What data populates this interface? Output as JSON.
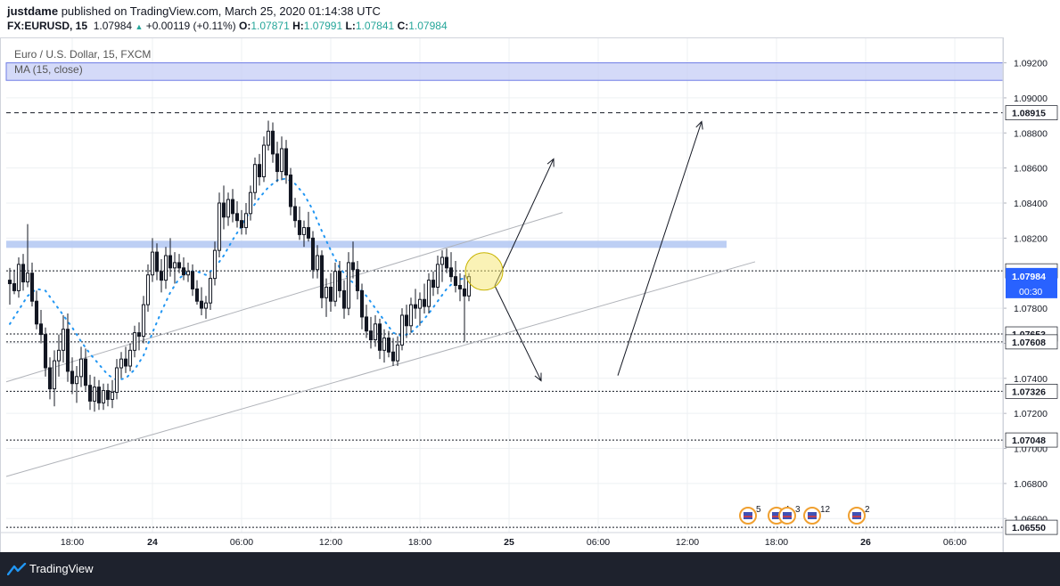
{
  "header": {
    "user": "justdame",
    "published": "published on TradingView.com, March 25, 2020 01:14:38 UTC",
    "symbol": "FX:EURUSD, 15",
    "last": "1.07984",
    "change": "+0.00119 (+0.11%)",
    "o_label": "O:",
    "o_val": "1.07871",
    "h_label": "H:",
    "h_val": "1.07991",
    "l_label": "L:",
    "l_val": "1.07841",
    "c_label": "C:",
    "c_val": "1.07984"
  },
  "legend": {
    "title": "Euro / U.S. Dollar, 15, FXCM",
    "indicator": "MA (15, close)"
  },
  "footer": {
    "brand": "TradingView"
  },
  "colors": {
    "up": "#26a69a",
    "candle": "#131722",
    "ma": "#2196f3",
    "zone": "#b2c7f2",
    "zone_stroke": "#6f7de6",
    "highlight": "#f5e66e",
    "last_price": "#2962ff",
    "footer_bg": "#1e222d"
  },
  "chart_data": {
    "type": "candlestick",
    "title": "Euro / U.S. Dollar, 15, FXCM",
    "y_ticks": [
      1.092,
      1.09,
      1.088,
      1.086,
      1.084,
      1.082,
      1.078,
      1.076,
      1.074,
      1.072,
      1.07,
      1.068,
      1.066
    ],
    "y_tick_labels": [
      "1.09200",
      "1.09000",
      "1.08800",
      "1.08600",
      "1.08400",
      "1.08200",
      "1.07800",
      "1.07600",
      "1.07400",
      "1.07200",
      "1.07000",
      "1.06800",
      "1.06600"
    ],
    "ylim": [
      1.0652,
      1.0934
    ],
    "x_ticks": [
      0.5,
      5,
      10,
      15,
      20,
      25,
      30,
      35,
      40,
      45,
      50
    ],
    "x_tick_labels": [
      "18:00",
      "24",
      "06:00",
      "12:00",
      "18:00",
      "25",
      "06:00",
      "12:00",
      "18:00",
      "26",
      "06:00"
    ],
    "x_tick_bold": [
      false,
      true,
      false,
      false,
      false,
      true,
      false,
      false,
      false,
      true,
      false
    ],
    "xlim": [
      -3.2,
      52.7
    ],
    "candles": [
      [
        -3.0,
        1.0796,
        1.0803,
        1.0782,
        1.0794
      ],
      [
        -2.75,
        1.0794,
        1.0802,
        1.0788,
        1.079
      ],
      [
        -2.5,
        1.079,
        1.0809,
        1.0786,
        1.0805
      ],
      [
        -2.25,
        1.0805,
        1.0811,
        1.079,
        1.0795
      ],
      [
        -2.0,
        1.0795,
        1.0828,
        1.0792,
        1.08
      ],
      [
        -1.75,
        1.08,
        1.0806,
        1.0781,
        1.0784
      ],
      [
        -1.5,
        1.0784,
        1.079,
        1.0768,
        1.0771
      ],
      [
        -1.25,
        1.0771,
        1.0779,
        1.076,
        1.0765
      ],
      [
        -1.0,
        1.0765,
        1.0769,
        1.0741,
        1.0746
      ],
      [
        -0.75,
        1.0746,
        1.0752,
        1.0728,
        1.0734
      ],
      [
        -0.5,
        1.0734,
        1.0756,
        1.0724,
        1.075
      ],
      [
        -0.25,
        1.075,
        1.0765,
        1.0741,
        1.0756
      ],
      [
        0.0,
        1.0756,
        1.0776,
        1.0749,
        1.0768
      ],
      [
        0.25,
        1.0768,
        1.0777,
        1.0738,
        1.0744
      ],
      [
        0.5,
        1.0744,
        1.0752,
        1.0731,
        1.0737
      ],
      [
        0.75,
        1.0737,
        1.0747,
        1.0726,
        1.0741
      ],
      [
        1.0,
        1.0741,
        1.0758,
        1.0735,
        1.0751
      ],
      [
        1.25,
        1.0751,
        1.0757,
        1.0733,
        1.0736
      ],
      [
        1.5,
        1.0736,
        1.0742,
        1.0722,
        1.0727
      ],
      [
        1.75,
        1.0727,
        1.0741,
        1.0721,
        1.0735
      ],
      [
        2.0,
        1.0735,
        1.0739,
        1.0722,
        1.0726
      ],
      [
        2.25,
        1.0726,
        1.0737,
        1.0722,
        1.0733
      ],
      [
        2.5,
        1.0733,
        1.0737,
        1.0724,
        1.0728
      ],
      [
        2.75,
        1.0728,
        1.0739,
        1.0723,
        1.0732
      ],
      [
        3.0,
        1.0732,
        1.0751,
        1.0728,
        1.0746
      ],
      [
        3.25,
        1.0746,
        1.0755,
        1.074,
        1.0751
      ],
      [
        3.5,
        1.0751,
        1.0758,
        1.0743,
        1.0747
      ],
      [
        3.75,
        1.0747,
        1.076,
        1.0744,
        1.0756
      ],
      [
        4.0,
        1.0756,
        1.077,
        1.0752,
        1.0766
      ],
      [
        4.25,
        1.0766,
        1.0772,
        1.0756,
        1.0764
      ],
      [
        4.5,
        1.0764,
        1.0787,
        1.076,
        1.0782
      ],
      [
        4.75,
        1.0782,
        1.0805,
        1.0778,
        1.0799
      ],
      [
        5.0,
        1.0799,
        1.082,
        1.0795,
        1.0812
      ],
      [
        5.25,
        1.0812,
        1.0817,
        1.0796,
        1.0801
      ],
      [
        5.5,
        1.0801,
        1.0808,
        1.0789,
        1.0796
      ],
      [
        5.75,
        1.0796,
        1.0815,
        1.0791,
        1.081
      ],
      [
        6.0,
        1.081,
        1.082,
        1.0798,
        1.0803
      ],
      [
        6.25,
        1.0803,
        1.0812,
        1.0794,
        1.0806
      ],
      [
        6.5,
        1.0806,
        1.0811,
        1.08,
        1.0803
      ],
      [
        6.75,
        1.0803,
        1.0809,
        1.0796,
        1.0799
      ],
      [
        7.0,
        1.0799,
        1.0806,
        1.0795,
        1.0801
      ],
      [
        7.25,
        1.0801,
        1.0805,
        1.0787,
        1.0791
      ],
      [
        7.5,
        1.0791,
        1.0796,
        1.0782,
        1.0784
      ],
      [
        7.75,
        1.0784,
        1.0792,
        1.0776,
        1.078
      ],
      [
        8.0,
        1.078,
        1.0787,
        1.0774,
        1.0783
      ],
      [
        8.25,
        1.0783,
        1.0801,
        1.0779,
        1.0797
      ],
      [
        8.5,
        1.0797,
        1.0818,
        1.0793,
        1.0813
      ],
      [
        8.75,
        1.0813,
        1.0846,
        1.0809,
        1.084
      ],
      [
        9.0,
        1.084,
        1.085,
        1.0825,
        1.0832
      ],
      [
        9.25,
        1.0832,
        1.0846,
        1.0827,
        1.0842
      ],
      [
        9.5,
        1.0842,
        1.0848,
        1.0829,
        1.0834
      ],
      [
        9.75,
        1.0834,
        1.0841,
        1.0826,
        1.083
      ],
      [
        10.0,
        1.083,
        1.0836,
        1.0822,
        1.0826
      ],
      [
        10.25,
        1.0826,
        1.084,
        1.0822,
        1.0834
      ],
      [
        10.5,
        1.0834,
        1.085,
        1.083,
        1.0846
      ],
      [
        10.75,
        1.0846,
        1.0866,
        1.0842,
        1.0862
      ],
      [
        11.0,
        1.0862,
        1.0868,
        1.085,
        1.0855
      ],
      [
        11.25,
        1.0855,
        1.0878,
        1.0852,
        1.0873
      ],
      [
        11.5,
        1.0873,
        1.0887,
        1.087,
        1.0881
      ],
      [
        11.75,
        1.0881,
        1.0886,
        1.0863,
        1.0868
      ],
      [
        12.0,
        1.0868,
        1.0875,
        1.0852,
        1.0858
      ],
      [
        12.25,
        1.0858,
        1.0878,
        1.0853,
        1.0871
      ],
      [
        12.5,
        1.0871,
        1.0876,
        1.0851,
        1.0856
      ],
      [
        12.75,
        1.0856,
        1.086,
        1.0833,
        1.0838
      ],
      [
        13.0,
        1.0838,
        1.0843,
        1.0826,
        1.083
      ],
      [
        13.25,
        1.083,
        1.0838,
        1.0819,
        1.0822
      ],
      [
        13.5,
        1.0822,
        1.083,
        1.0815,
        1.0826
      ],
      [
        13.75,
        1.0826,
        1.0835,
        1.0818,
        1.082
      ],
      [
        14.0,
        1.082,
        1.0824,
        1.0797,
        1.0802
      ],
      [
        14.25,
        1.0802,
        1.0816,
        1.0797,
        1.081
      ],
      [
        14.5,
        1.081,
        1.0813,
        1.078,
        1.0786
      ],
      [
        14.75,
        1.0786,
        1.0797,
        1.0775,
        1.0792
      ],
      [
        15.0,
        1.0792,
        1.08,
        1.0778,
        1.0784
      ],
      [
        15.25,
        1.0784,
        1.0806,
        1.0781,
        1.0801
      ],
      [
        15.5,
        1.0801,
        1.0807,
        1.0786,
        1.079
      ],
      [
        15.75,
        1.079,
        1.0796,
        1.0774,
        1.078
      ],
      [
        16.0,
        1.078,
        1.0812,
        1.0776,
        1.0806
      ],
      [
        16.25,
        1.0806,
        1.0818,
        1.0797,
        1.0802
      ],
      [
        16.5,
        1.0802,
        1.0807,
        1.0785,
        1.079
      ],
      [
        16.75,
        1.079,
        1.0794,
        1.0768,
        1.0775
      ],
      [
        17.0,
        1.0775,
        1.0782,
        1.0763,
        1.0767
      ],
      [
        17.25,
        1.0767,
        1.0775,
        1.0757,
        1.0762
      ],
      [
        17.5,
        1.0762,
        1.0776,
        1.0758,
        1.0771
      ],
      [
        17.75,
        1.0771,
        1.0774,
        1.0751,
        1.0756
      ],
      [
        18.0,
        1.0756,
        1.0768,
        1.0749,
        1.0763
      ],
      [
        18.25,
        1.0763,
        1.0767,
        1.0752,
        1.0755
      ],
      [
        18.5,
        1.0755,
        1.0763,
        1.0747,
        1.075
      ],
      [
        18.75,
        1.075,
        1.0764,
        1.0747,
        1.0759
      ],
      [
        19.0,
        1.0759,
        1.078,
        1.0756,
        1.0776
      ],
      [
        19.25,
        1.0776,
        1.0782,
        1.0763,
        1.077
      ],
      [
        19.5,
        1.077,
        1.0786,
        1.0766,
        1.0782
      ],
      [
        19.75,
        1.0782,
        1.0791,
        1.0774,
        1.078
      ],
      [
        20.0,
        1.078,
        1.0789,
        1.077,
        1.0785
      ],
      [
        20.25,
        1.0785,
        1.0794,
        1.0777,
        1.0781
      ],
      [
        20.5,
        1.0781,
        1.08,
        1.0777,
        1.0796
      ],
      [
        20.75,
        1.0796,
        1.0801,
        1.0787,
        1.0792
      ],
      [
        21.0,
        1.0792,
        1.081,
        1.0788,
        1.0805
      ],
      [
        21.25,
        1.0805,
        1.0813,
        1.0795,
        1.0809
      ],
      [
        21.5,
        1.0809,
        1.0814,
        1.08,
        1.0803
      ],
      [
        21.75,
        1.0803,
        1.0812,
        1.0795,
        1.0798
      ],
      [
        22.0,
        1.0798,
        1.0807,
        1.0789,
        1.0793
      ],
      [
        22.25,
        1.0793,
        1.08,
        1.0784,
        1.0791
      ],
      [
        22.5,
        1.0791,
        1.0799,
        1.0761,
        1.0787
      ],
      [
        22.75,
        1.0787,
        1.08,
        1.0784,
        1.0798
      ]
    ],
    "ma_label": "MA (15, close)",
    "ma_points": [
      [
        -3.0,
        1.0771
      ],
      [
        -2.5,
        1.0779
      ],
      [
        -2.0,
        1.0787
      ],
      [
        -1.5,
        1.0791
      ],
      [
        -1.0,
        1.079
      ],
      [
        -0.5,
        1.0783
      ],
      [
        0.0,
        1.0776
      ],
      [
        0.5,
        1.0769
      ],
      [
        1.0,
        1.0761
      ],
      [
        1.5,
        1.0754
      ],
      [
        2.0,
        1.0748
      ],
      [
        2.5,
        1.0742
      ],
      [
        3.0,
        1.0739
      ],
      [
        3.5,
        1.074
      ],
      [
        4.0,
        1.0745
      ],
      [
        4.5,
        1.0753
      ],
      [
        5.0,
        1.0766
      ],
      [
        5.5,
        1.0778
      ],
      [
        6.0,
        1.0789
      ],
      [
        6.5,
        1.0797
      ],
      [
        7.0,
        1.0801
      ],
      [
        7.5,
        1.0801
      ],
      [
        8.0,
        1.0799
      ],
      [
        8.5,
        1.0803
      ],
      [
        9.0,
        1.081
      ],
      [
        9.5,
        1.0819
      ],
      [
        10.0,
        1.0827
      ],
      [
        10.5,
        1.0836
      ],
      [
        11.0,
        1.0843
      ],
      [
        11.5,
        1.0849
      ],
      [
        12.0,
        1.0853
      ],
      [
        12.5,
        1.0854
      ],
      [
        13.0,
        1.0851
      ],
      [
        13.5,
        1.0845
      ],
      [
        14.0,
        1.0836
      ],
      [
        14.5,
        1.0824
      ],
      [
        15.0,
        1.0813
      ],
      [
        15.5,
        1.0803
      ],
      [
        16.0,
        1.0797
      ],
      [
        16.5,
        1.0792
      ],
      [
        17.0,
        1.0787
      ],
      [
        17.5,
        1.078
      ],
      [
        18.0,
        1.0773
      ],
      [
        18.5,
        1.0766
      ],
      [
        19.0,
        1.0764
      ],
      [
        19.5,
        1.0766
      ],
      [
        20.0,
        1.0771
      ],
      [
        20.5,
        1.0777
      ],
      [
        21.0,
        1.0784
      ],
      [
        21.5,
        1.0791
      ],
      [
        22.0,
        1.0796
      ],
      [
        22.5,
        1.0797
      ],
      [
        22.75,
        1.0798
      ]
    ],
    "resistance_zones": [
      {
        "from": 1.091,
        "to": 1.092
      },
      {
        "from": 1.08165,
        "to": 1.08185
      }
    ],
    "horizontal_levels": [
      {
        "value": 1.08915,
        "label": "1.08915",
        "style": "dashed"
      },
      {
        "value": 1.08013,
        "label": "1.08013",
        "style": "dotted"
      },
      {
        "value": 1.07653,
        "label": "1.07653",
        "style": "dotted"
      },
      {
        "value": 1.07608,
        "label": "1.07608",
        "style": "dotted"
      },
      {
        "value": 1.07326,
        "label": "1.07326",
        "style": "dotted"
      },
      {
        "value": 1.07048,
        "label": "1.07048",
        "style": "dotted"
      },
      {
        "value": 1.0655,
        "label": "1.06550",
        "style": "dotted"
      }
    ],
    "channel_lines": [
      {
        "x1": -3.2,
        "y1": 1.0738,
        "x2": 28.0,
        "y2": 1.08346
      },
      {
        "x1": -3.2,
        "y1": 1.0684,
        "x2": 38.8,
        "y2": 1.08065
      }
    ],
    "projection_arrows": [
      {
        "x1": 24.2,
        "y1": 1.07928,
        "x2": 27.5,
        "y2": 1.08652
      },
      {
        "x1": 24.2,
        "y1": 1.07928,
        "x2": 26.8,
        "y2": 1.07386
      },
      {
        "x1": 31.1,
        "y1": 1.07416,
        "x2": 35.8,
        "y2": 1.08865
      }
    ],
    "highlight_circle": {
      "x": 23.6,
      "y": 1.0801
    },
    "current_price": {
      "value": 1.07984,
      "label": "1.07984",
      "countdown": "00:30"
    },
    "events": [
      {
        "x": 38.4,
        "count": "5"
      },
      {
        "x": 40.0,
        "count": "4"
      },
      {
        "x": 40.6,
        "count": "3"
      },
      {
        "x": 42.0,
        "count": "12"
      },
      {
        "x": 44.5,
        "count": "2"
      }
    ]
  }
}
